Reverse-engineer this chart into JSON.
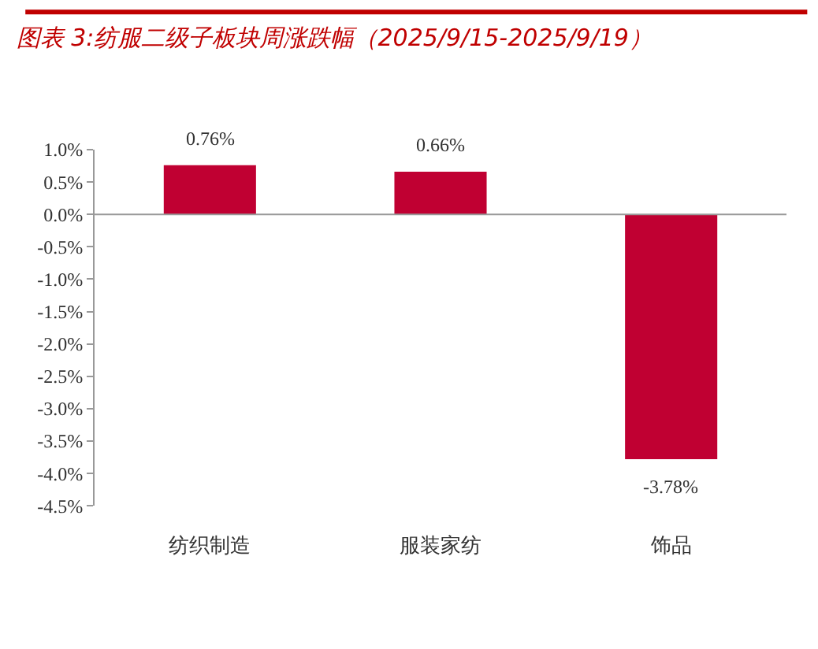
{
  "chart_data": {
    "type": "bar",
    "title": "图表 3:纺服二级子板块周涨跌幅（2025/9/15-2025/9/19）",
    "categories": [
      "纺织制造",
      "服装家纺",
      "饰品"
    ],
    "values": [
      0.76,
      0.66,
      -3.78
    ],
    "value_labels": [
      "0.76%",
      "0.66%",
      "-3.78%"
    ],
    "color": "#c00032",
    "ylim": [
      -4.5,
      1.0
    ],
    "yticks": [
      {
        "value": 1.0,
        "label": "1.0%"
      },
      {
        "value": 0.5,
        "label": "0.5%"
      },
      {
        "value": 0.0,
        "label": "0.0%"
      },
      {
        "value": -0.5,
        "label": "-0.5%"
      },
      {
        "value": -1.0,
        "label": "-1.0%"
      },
      {
        "value": -1.5,
        "label": "-1.5%"
      },
      {
        "value": -2.0,
        "label": "-2.0%"
      },
      {
        "value": -2.5,
        "label": "-2.5%"
      },
      {
        "value": -3.0,
        "label": "-3.0%"
      },
      {
        "value": -3.5,
        "label": "-3.5%"
      },
      {
        "value": -4.0,
        "label": "-4.0%"
      },
      {
        "value": -4.5,
        "label": "-4.5%"
      }
    ],
    "ref_lines": [
      {
        "axis": "y",
        "value": 0,
        "color": "#999999"
      }
    ],
    "legend": false
  }
}
